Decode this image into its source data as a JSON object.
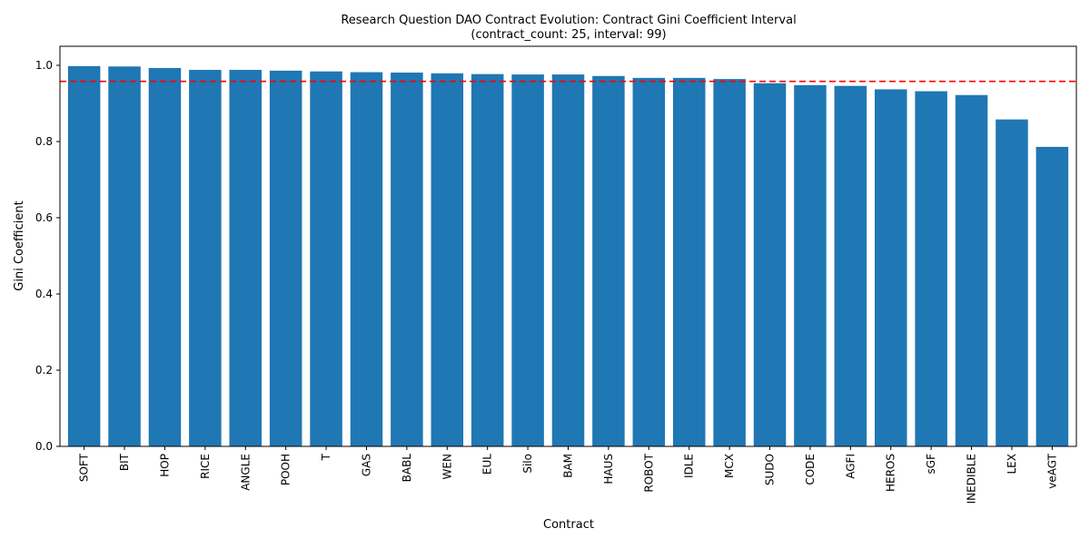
{
  "chart_data": {
    "type": "bar",
    "title_line1": "Research Question DAO Contract Evolution: Contract Gini Coefficient Interval",
    "title_line2": "(contract_count: 25, interval: 99)",
    "xlabel": "Contract",
    "ylabel": "Gini Coefficient",
    "ylim": [
      0,
      1.05
    ],
    "yticks": [
      "0.0",
      "0.2",
      "0.4",
      "0.6",
      "0.8",
      "1.0"
    ],
    "grid": false,
    "bar_color": "#1f77b4",
    "reference_line": {
      "value": 0.958,
      "color": "#ff0000",
      "style": "dashed"
    },
    "categories": [
      "SOFT",
      "BIT",
      "HOP",
      "RICE",
      "ANGLE",
      "POOH",
      "T",
      "GAS",
      "BABL",
      "WEN",
      "EUL",
      "Silo",
      "BAM",
      "HAUS",
      "ROBOT",
      "IDLE",
      "MCX",
      "SUDO",
      "CODE",
      "AGFI",
      "HEROS",
      "sGF",
      "INEDIBLE",
      "LEX",
      "veAGT"
    ],
    "values": [
      0.998,
      0.997,
      0.993,
      0.988,
      0.988,
      0.986,
      0.984,
      0.982,
      0.981,
      0.979,
      0.977,
      0.976,
      0.976,
      0.972,
      0.967,
      0.967,
      0.964,
      0.953,
      0.948,
      0.946,
      0.937,
      0.932,
      0.922,
      0.858,
      0.786
    ]
  }
}
